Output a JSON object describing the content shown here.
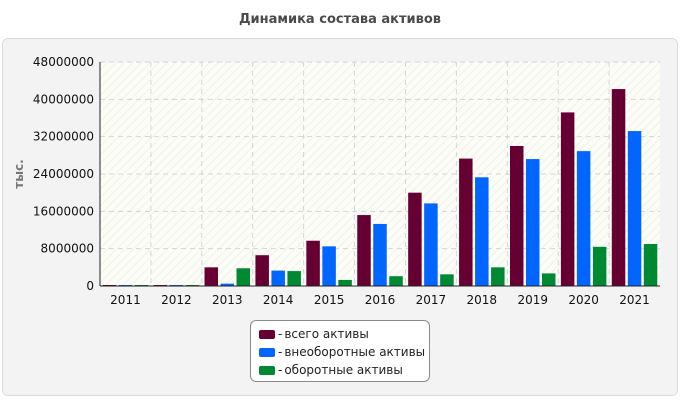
{
  "title": "Динамика состава активов",
  "legend_separator": "-",
  "chart_data": {
    "type": "bar",
    "title": "Динамика состава активов",
    "xlabel": "",
    "ylabel": "тыс.",
    "ylim": [
      0,
      48000000
    ],
    "yticks": [
      "0",
      "8000000",
      "16000000",
      "24000000",
      "32000000",
      "40000000",
      "48000000"
    ],
    "grid": true,
    "legend_position": "bottom-center",
    "categories": [
      "2011",
      "2012",
      "2013",
      "2014",
      "2015",
      "2016",
      "2017",
      "2018",
      "2019",
      "2020",
      "2021"
    ],
    "series": [
      {
        "name": "всего активы",
        "color": "#660033",
        "values": [
          200000,
          200000,
          4000000,
          6600000,
          9700000,
          15200000,
          20000000,
          27300000,
          30000000,
          37200000,
          42200000
        ]
      },
      {
        "name": "внеоборотные активы",
        "color": "#0066ff",
        "values": [
          200000,
          100000,
          500000,
          3300000,
          8500000,
          13300000,
          17700000,
          23300000,
          27200000,
          28900000,
          33200000
        ]
      },
      {
        "name": "оборотные активы",
        "color": "#008833",
        "values": [
          200000,
          100000,
          3800000,
          3200000,
          1300000,
          2100000,
          2500000,
          4000000,
          2700000,
          8400000,
          9000000
        ]
      }
    ]
  }
}
